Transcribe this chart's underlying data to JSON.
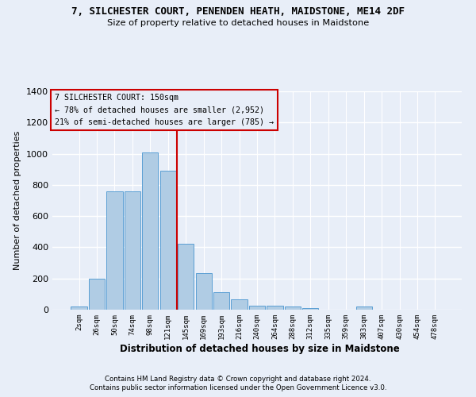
{
  "title_line1": "7, SILCHESTER COURT, PENENDEN HEATH, MAIDSTONE, ME14 2DF",
  "title_line2": "Size of property relative to detached houses in Maidstone",
  "xlabel": "Distribution of detached houses by size in Maidstone",
  "ylabel": "Number of detached properties",
  "footnote1": "Contains HM Land Registry data © Crown copyright and database right 2024.",
  "footnote2": "Contains public sector information licensed under the Open Government Licence v3.0.",
  "categories": [
    "2sqm",
    "26sqm",
    "50sqm",
    "74sqm",
    "98sqm",
    "121sqm",
    "145sqm",
    "169sqm",
    "193sqm",
    "216sqm",
    "240sqm",
    "264sqm",
    "288sqm",
    "312sqm",
    "335sqm",
    "359sqm",
    "383sqm",
    "407sqm",
    "430sqm",
    "454sqm",
    "478sqm"
  ],
  "values": [
    20,
    200,
    760,
    760,
    1010,
    890,
    425,
    235,
    110,
    68,
    28,
    28,
    18,
    8,
    0,
    0,
    20,
    0,
    0,
    0,
    0
  ],
  "bar_color": "#b0cce4",
  "bar_edge_color": "#5a9fd4",
  "highlight_label": "7 SILCHESTER COURT: 150sqm",
  "highlight_smaller": "← 78% of detached houses are smaller (2,952)",
  "highlight_larger": "21% of semi-detached houses are larger (785) →",
  "vline_color": "#cc0000",
  "ylim": [
    0,
    1400
  ],
  "yticks": [
    0,
    200,
    400,
    600,
    800,
    1000,
    1200,
    1400
  ],
  "bg_color": "#e8eef8",
  "grid_color": "#ffffff",
  "box_edge_color": "#cc0000"
}
